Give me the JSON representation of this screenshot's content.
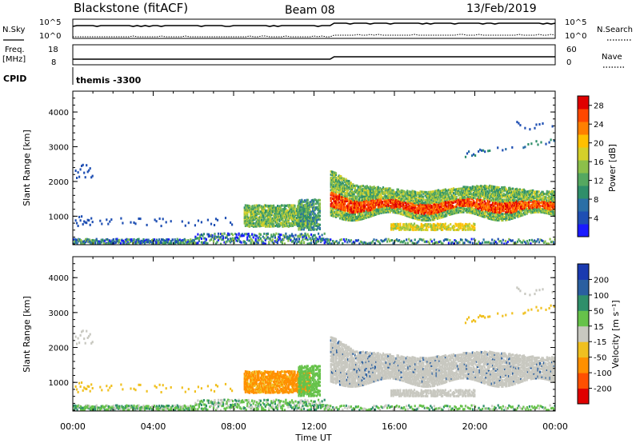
{
  "header": {
    "station": "Blackstone (fitACF)",
    "beam": "Beam 08",
    "date": "13/Feb/2019"
  },
  "param_panels": {
    "nsky_label": "N.Sky",
    "nsearch_label": "N.Search",
    "scale_top": "10^5",
    "scale_bottom": "10^0",
    "freq_label_line1": "Freq.",
    "freq_label_line2": "[MHz]",
    "freq_ticks": [
      "18",
      "8"
    ],
    "nave_label": "Nave",
    "nave_ticks": [
      "60",
      "0"
    ],
    "cpid_label": "CPID",
    "cpid_value": "themis -3300"
  },
  "chart_data": [
    {
      "type": "heatmap",
      "name": "power",
      "ylabel": "Slant Range [km]",
      "ylim": [
        180,
        4600
      ],
      "yticks": [
        1000,
        2000,
        3000,
        4000
      ],
      "xlim": [
        0,
        24
      ],
      "xticks": [
        "00:00",
        "04:00",
        "08:00",
        "12:00",
        "16:00",
        "20:00",
        "00:00"
      ],
      "colorbar": {
        "label": "Power [dB]",
        "ticks": [
          4,
          8,
          12,
          16,
          20,
          24,
          28
        ],
        "range": [
          0,
          30
        ],
        "colors": [
          "#1a1aff",
          "#1f4fb3",
          "#2a6fa6",
          "#2f8f6a",
          "#55a860",
          "#8cc04a",
          "#d4d02a",
          "#ffc000",
          "#ff8000",
          "#ff4800",
          "#e00000"
        ]
      }
    },
    {
      "type": "heatmap",
      "name": "velocity",
      "ylabel": "Slant Range [km]",
      "ylim": [
        180,
        4600
      ],
      "yticks": [
        1000,
        2000,
        3000,
        4000
      ],
      "xlim": [
        0,
        24
      ],
      "xlabel": "Time UT",
      "xticks": [
        "00:00",
        "04:00",
        "08:00",
        "12:00",
        "16:00",
        "20:00",
        "00:00"
      ],
      "colorbar": {
        "label": "Velocity [m s⁻¹]",
        "ticks": [
          200,
          100,
          50,
          15,
          -15,
          -50,
          -100,
          -200
        ],
        "colors": [
          "#1a3ab0",
          "#2a5fa0",
          "#2f8f6a",
          "#66c24a",
          "#c8c8c0",
          "#f0c020",
          "#ff9000",
          "#ff5000",
          "#e00000"
        ]
      }
    }
  ]
}
